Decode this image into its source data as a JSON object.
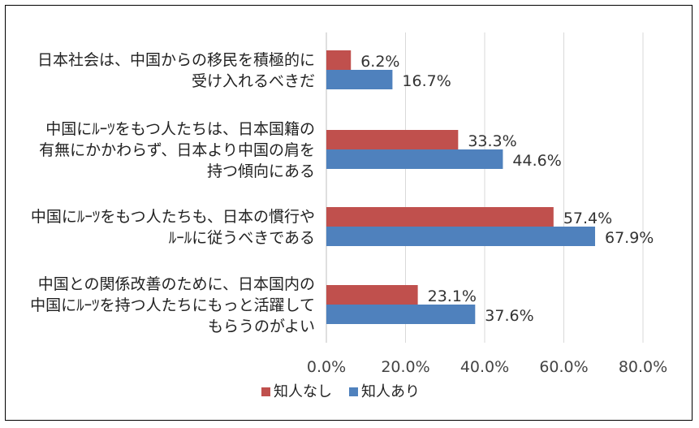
{
  "chart_data": {
    "type": "bar",
    "orientation": "horizontal",
    "categories": [
      [
        "日本社会は、中国からの移民を積極的に",
        "受け入れるべきだ"
      ],
      [
        "中国にﾙｰﾂをもつ人たちは、日本国籍の",
        "有無にかかわらず、日本より中国の肩を",
        "持つ傾向にある"
      ],
      [
        "中国にﾙｰﾂをもつ人たちも、日本の慣行や",
        "ﾙｰﾙに従うべきである"
      ],
      [
        "中国との関係改善のために、日本国内の",
        "中国にﾙｰﾂを持つ人たちにもっと活躍して",
        "もらうのがよい"
      ]
    ],
    "series": [
      {
        "name": "知人なし",
        "color": "#c0504d",
        "values": [
          6.2,
          33.3,
          57.4,
          23.1
        ],
        "labels": [
          "6.2%",
          "33.3%",
          "57.4%",
          "23.1%"
        ]
      },
      {
        "name": "知人あり",
        "color": "#4f81bd",
        "values": [
          16.7,
          44.6,
          67.9,
          37.6
        ],
        "labels": [
          "16.7%",
          "44.6%",
          "67.9%",
          "37.6%"
        ]
      }
    ],
    "xlim": [
      0,
      80
    ],
    "xticks": [
      "0.0%",
      "20.0%",
      "40.0%",
      "60.0%",
      "80.0%"
    ],
    "grid": true,
    "legend": "bottom"
  }
}
